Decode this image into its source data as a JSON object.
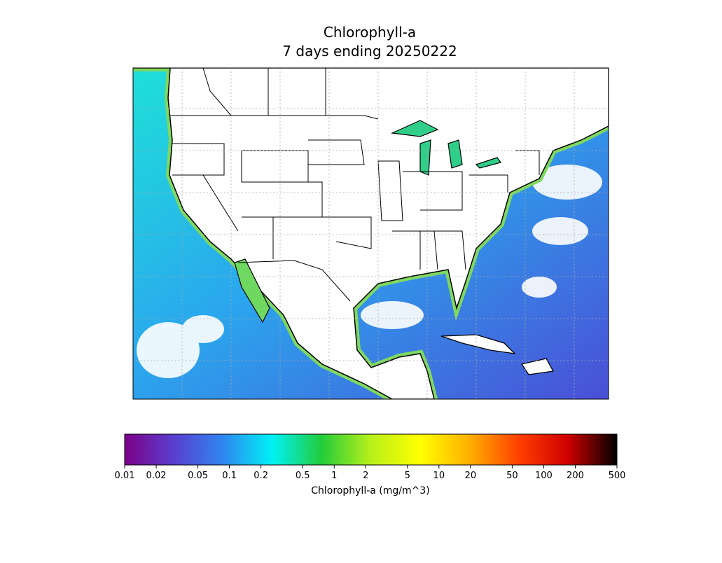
{
  "map": {
    "title": [
      "Chlorophyll-a",
      "7 days ending 20250222"
    ]
  },
  "colorbar": {
    "label": "Chlorophyll-a (mg/m^3)",
    "scale": "log",
    "lim": [
      0.01,
      500
    ],
    "ticks": [
      0.01,
      0.02,
      0.05,
      0.1,
      0.2,
      0.5,
      1,
      2,
      5,
      10,
      20,
      50,
      100,
      200,
      500
    ],
    "colors": [
      "#7b0087",
      "#5a3fcf",
      "#2f86f0",
      "#00f2f5",
      "#22cc3a",
      "#b8f01a",
      "#ffff00",
      "#ffb000",
      "#ff4000",
      "#d00000",
      "#000000"
    ]
  }
}
